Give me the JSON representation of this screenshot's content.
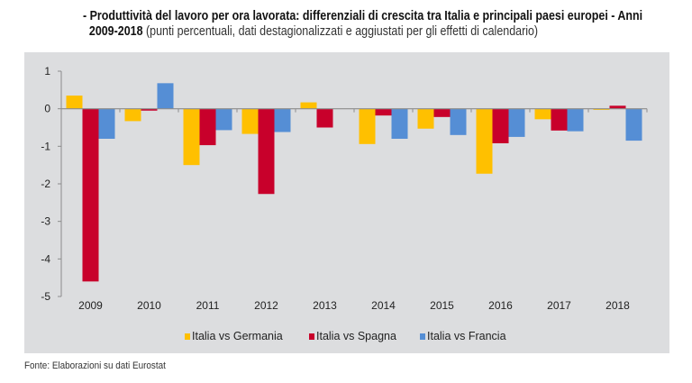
{
  "header": {
    "title_bold_1": "- Produttività del lavoro per ora lavorata: differenziali di crescita tra Italia e principali paesi europei - Anni",
    "title_bold_2": "2009-2018",
    "title_sub": " (punti percentuali, dati destagionalizzati e aggiustati per gli effetti di calendario)"
  },
  "footer": {
    "source": "Fonte: Elaborazioni su dati Eurostat"
  },
  "chart_data": {
    "type": "bar",
    "title": "Produttività del lavoro per ora lavorata: differenziali di crescita tra Italia e principali paesi europei - Anni 2009-2018",
    "subtitle": "(punti percentuali, dati destagionalizzati e aggiustati per gli effetti di calendario)",
    "xlabel": "",
    "ylabel": "",
    "ylim": [
      -5,
      1
    ],
    "yticks": [
      1,
      0,
      -1,
      -2,
      -3,
      -4,
      -5
    ],
    "ytick_labels": [
      "1",
      "0",
      "-1",
      "-2",
      "-3",
      "-4",
      "-5"
    ],
    "grid": false,
    "legend_position": "bottom",
    "categories": [
      "2009",
      "2010",
      "2011",
      "2012",
      "2013",
      "2014",
      "2015",
      "2016",
      "2017",
      "2018"
    ],
    "series": [
      {
        "name": "Italia vs Germania",
        "color": "#ffc000",
        "values": [
          0.35,
          -0.33,
          -1.5,
          -0.67,
          0.17,
          -0.94,
          -0.53,
          -1.73,
          -0.28,
          -0.03
        ]
      },
      {
        "name": "Italia vs Spagna",
        "color": "#c8002b",
        "values": [
          -4.6,
          -0.05,
          -0.97,
          -2.27,
          -0.5,
          -0.18,
          -0.22,
          -0.92,
          -0.58,
          0.08
        ]
      },
      {
        "name": "Italia vs Francia",
        "color": "#558ed5",
        "values": [
          -0.8,
          0.68,
          -0.57,
          -0.62,
          0.0,
          -0.8,
          -0.7,
          -0.75,
          -0.6,
          -0.85
        ]
      }
    ]
  }
}
